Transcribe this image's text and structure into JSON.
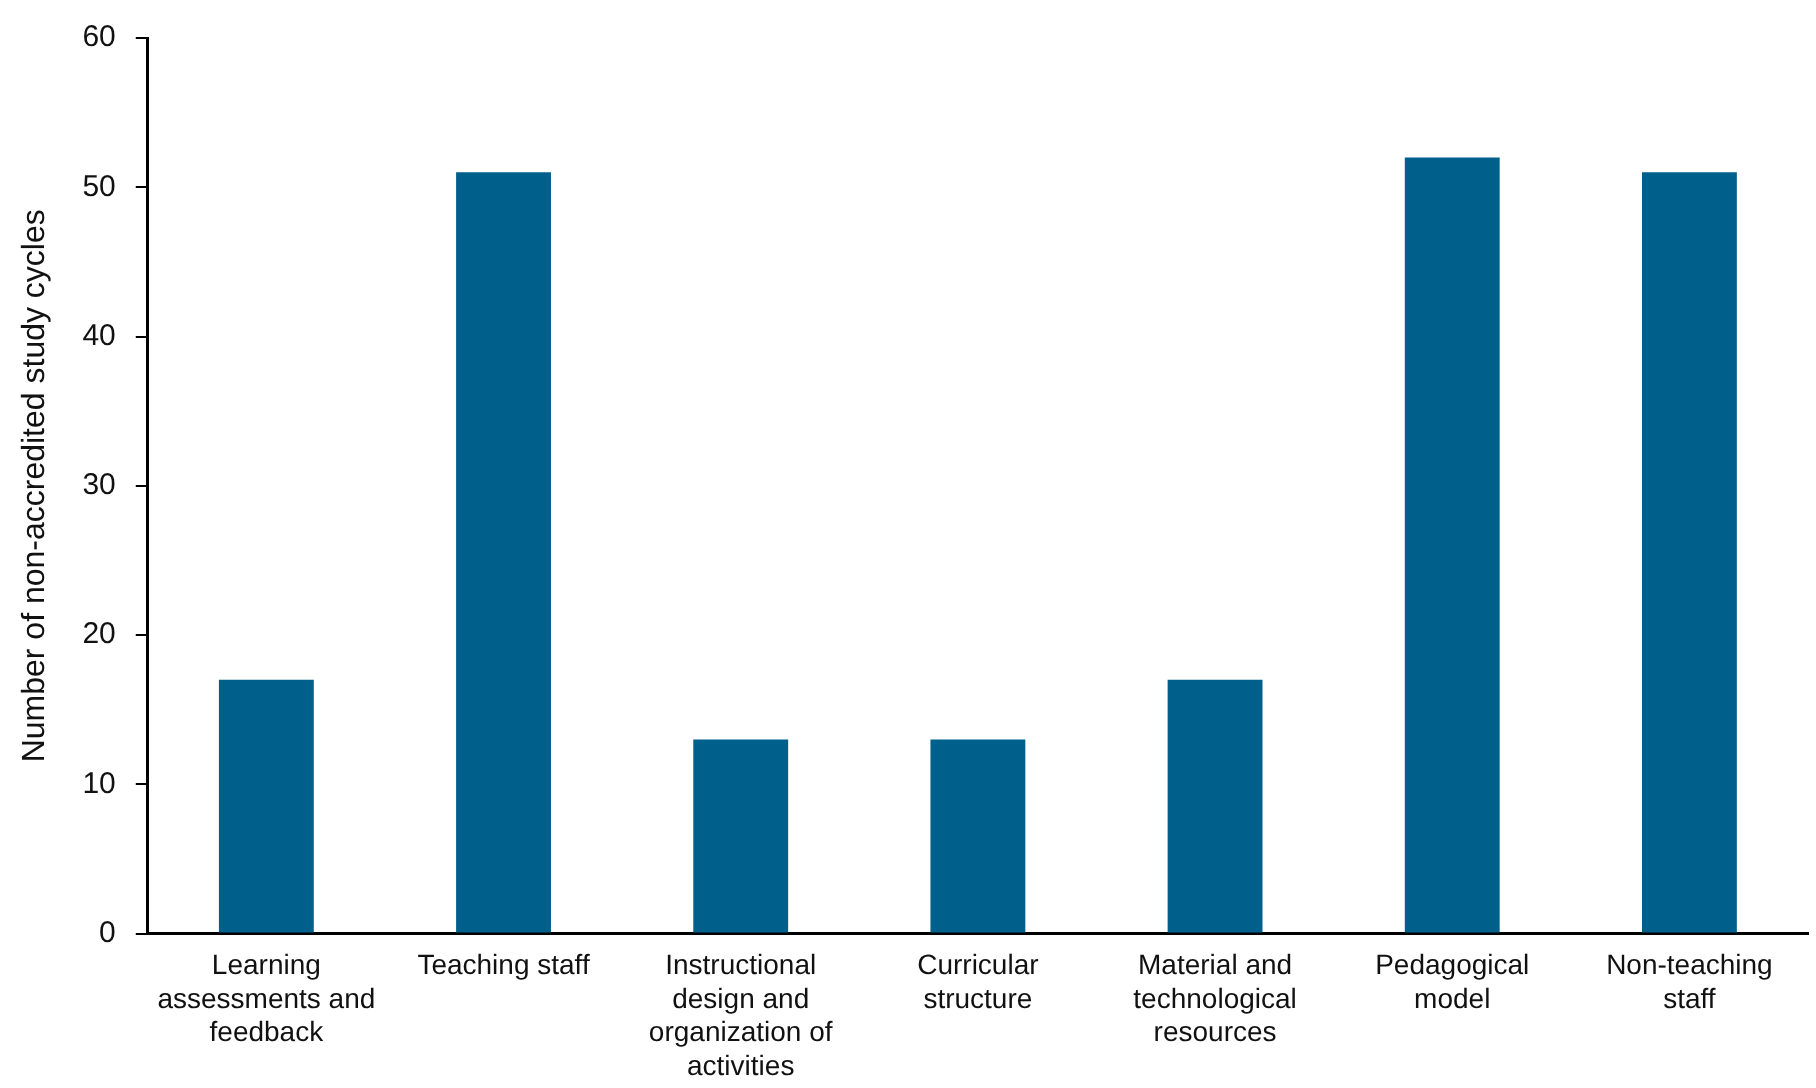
{
  "chart_data": {
    "type": "bar",
    "ylabel": "Number of non-accredited study cycles",
    "categories": [
      "Learning assessments and feedback",
      "Teaching staff",
      "Instructional design and organization of activities",
      "Curricular structure",
      "Material and technological resources",
      "Pedagogical model",
      "Non-teaching staff"
    ],
    "values": [
      17,
      51,
      13,
      13,
      17,
      52,
      51
    ],
    "color": "#00608b",
    "ylim": [
      0,
      60
    ],
    "yticks": [
      0,
      10,
      20,
      30,
      40,
      50,
      60
    ],
    "grid": false,
    "legend": false
  }
}
